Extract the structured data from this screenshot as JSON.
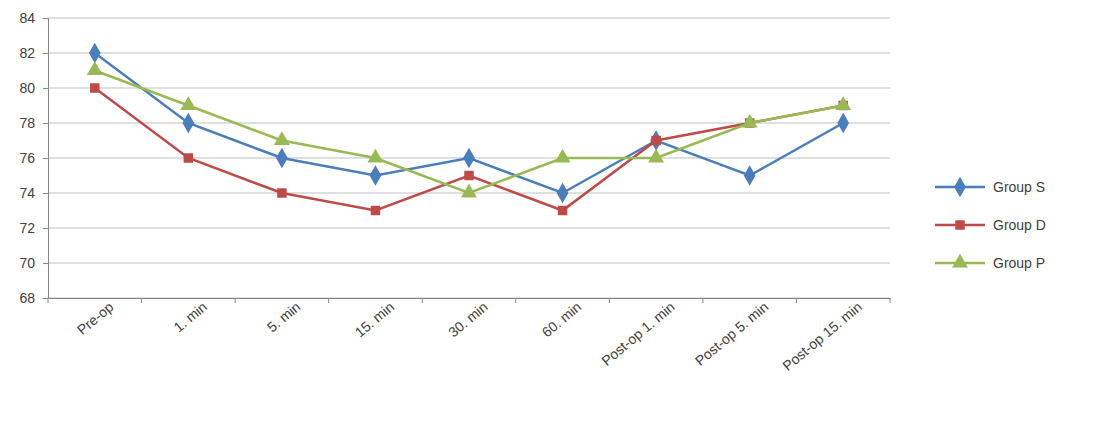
{
  "chart_data": {
    "type": "line",
    "categories": [
      "Pre-op",
      "1. min",
      "5. min",
      "15. min",
      "30. min",
      "60. min",
      "Post-op 1. min",
      "Post-op 5. min",
      "Post-op 15. min"
    ],
    "series": [
      {
        "name": "Group S",
        "color": "#4a7ebb",
        "marker": "diamond",
        "values": [
          82,
          78,
          76,
          75,
          76,
          74,
          77,
          75,
          78
        ]
      },
      {
        "name": "Group D",
        "color": "#be4b48",
        "marker": "square",
        "values": [
          80,
          76,
          74,
          73,
          75,
          73,
          77,
          78,
          79
        ]
      },
      {
        "name": "Group P",
        "color": "#98b954",
        "marker": "triangle",
        "values": [
          81,
          79,
          77,
          76,
          74,
          76,
          76,
          78,
          79
        ]
      }
    ],
    "ylim": [
      68,
      84
    ],
    "yticks": [
      68,
      70,
      72,
      74,
      76,
      78,
      80,
      82,
      84
    ],
    "grid": true,
    "legend": "right"
  }
}
